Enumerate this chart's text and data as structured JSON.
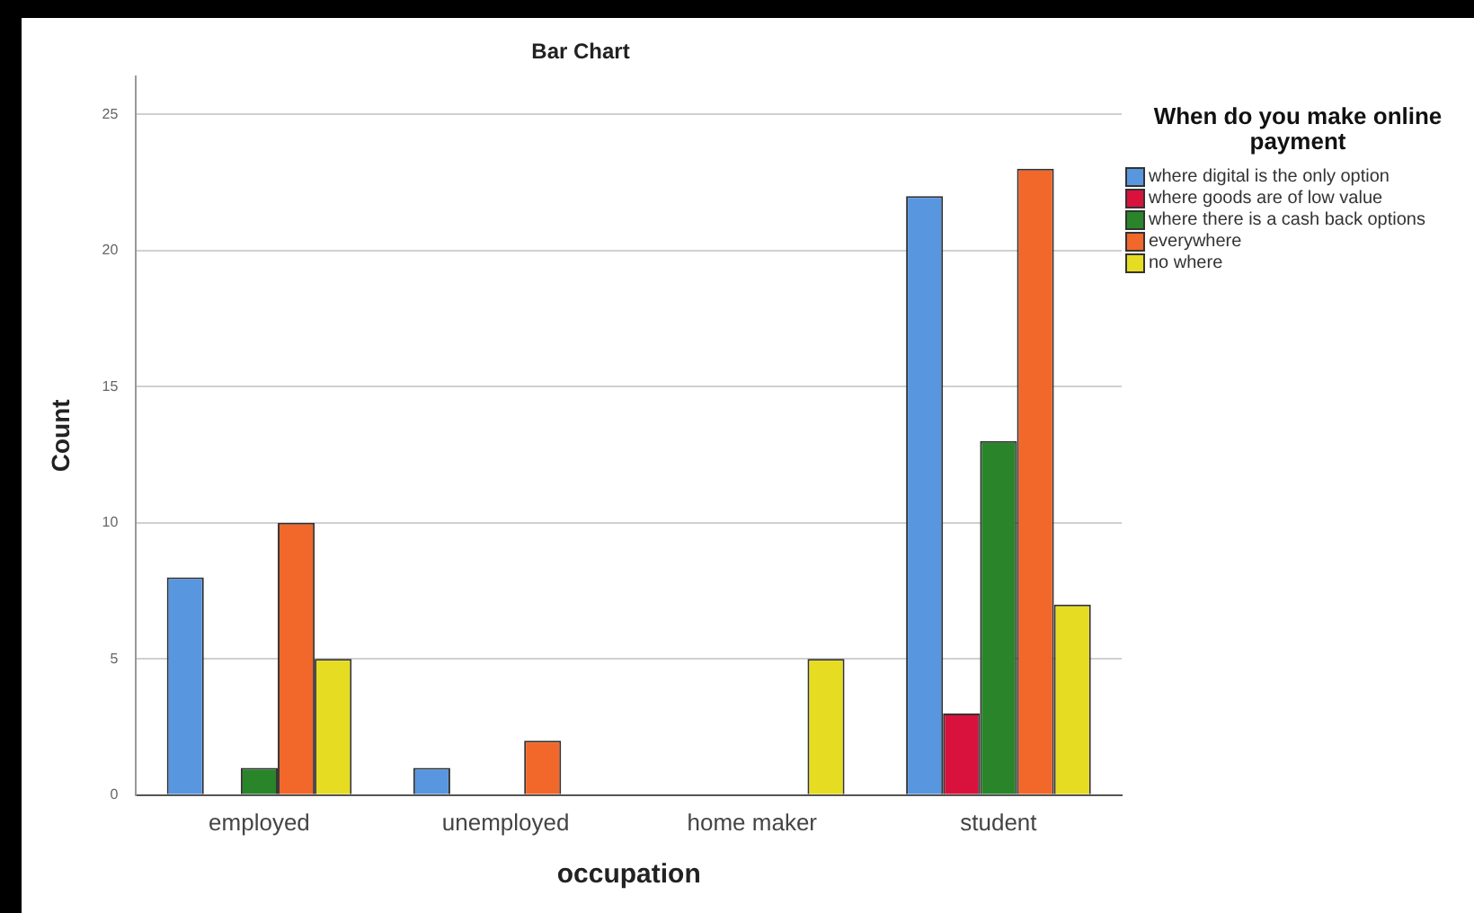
{
  "chart_data": {
    "type": "bar",
    "title": "Bar Chart",
    "xlabel": "occupation",
    "ylabel": "Count",
    "legend_title": "When do you make online payment",
    "categories": [
      "employed",
      "unemployed",
      "home maker",
      "student"
    ],
    "series": [
      {
        "name": "where digital is the only option",
        "color": "#5897e0",
        "values": [
          8,
          1,
          0,
          22
        ]
      },
      {
        "name": "where goods are of low value",
        "color": "#d8123c",
        "values": [
          0,
          0,
          0,
          3
        ]
      },
      {
        "name": "where there is a cash back options",
        "color": "#2a852a",
        "values": [
          1,
          0,
          0,
          13
        ]
      },
      {
        "name": "everywhere",
        "color": "#f2672a",
        "values": [
          10,
          2,
          0,
          23
        ]
      },
      {
        "name": "no where",
        "color": "#e6dc22",
        "values": [
          5,
          0,
          5,
          7
        ]
      }
    ],
    "ylim": [
      0,
      26.4
    ],
    "yticks": [
      0,
      5,
      10,
      15,
      20,
      25
    ],
    "grid": "y",
    "legend": "right"
  }
}
